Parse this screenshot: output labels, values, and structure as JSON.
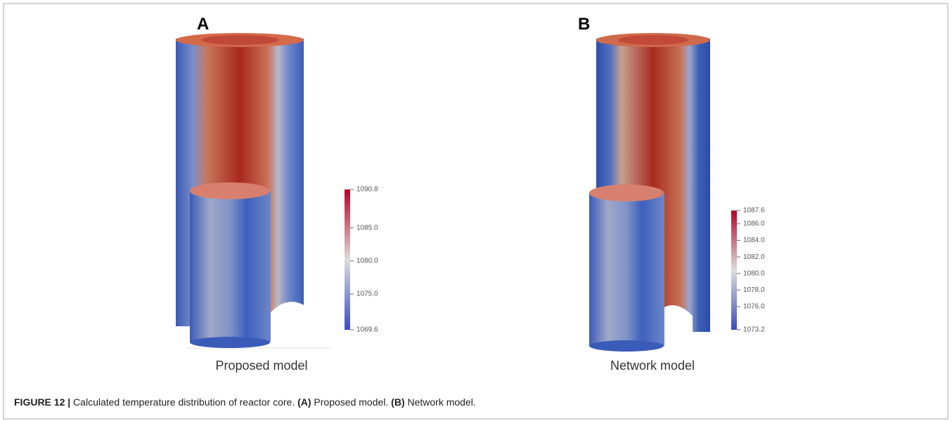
{
  "panels": [
    {
      "label": "A",
      "caption": "Proposed model",
      "colorbar": {
        "ticks": [
          "1090.8",
          "1085.0",
          "1080.0",
          "1075.0",
          "1069.6"
        ]
      }
    },
    {
      "label": "B",
      "caption": "Network model",
      "colorbar": {
        "ticks": [
          "1087.6",
          "1086.0",
          "1084.0",
          "1082.0",
          "1080.0",
          "1078.0",
          "1076.0",
          "1073.2"
        ]
      }
    }
  ],
  "figure_caption": {
    "segments": [
      "FIGURE 12 |",
      " Calculated temperature distribution of reactor core. ",
      "(A)",
      " Proposed model. ",
      "(B)",
      " Network model."
    ]
  }
}
